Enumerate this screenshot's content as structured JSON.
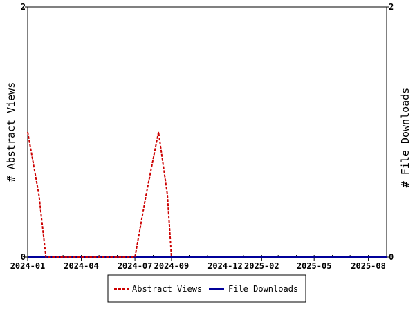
{
  "chart_data": {
    "type": "line",
    "xlabel": "",
    "ylabel": "# Abstract Views",
    "y2label": "# File Downloads",
    "x_tick_labels": [
      "2024-01",
      "2024-04",
      "2024-07",
      "2024-09",
      "2024-12",
      "2025-02",
      "2025-05",
      "2025-08"
    ],
    "ylim": [
      0,
      2
    ],
    "y2lim": [
      0,
      2
    ],
    "y_ticks": [
      0,
      2
    ],
    "y2_ticks": [
      0,
      2
    ],
    "grid": false,
    "legend_position": "bottom",
    "series": [
      {
        "name": "Abstract Views",
        "axis": "left",
        "color": "#cc0000",
        "style": "dashed",
        "x": [
          "2024-01",
          "2024-01-20",
          "2024-02",
          "2024-07",
          "2024-07-20",
          "2024-08-10",
          "2024-08-25",
          "2024-09"
        ],
        "y": [
          1,
          0.5,
          0,
          0,
          0.5,
          1,
          0.5,
          0
        ]
      },
      {
        "name": "File Downloads",
        "axis": "right",
        "color": "#000099",
        "style": "solid",
        "x": [
          "2024-01",
          "2025-09"
        ],
        "y": [
          0,
          0
        ]
      }
    ]
  }
}
